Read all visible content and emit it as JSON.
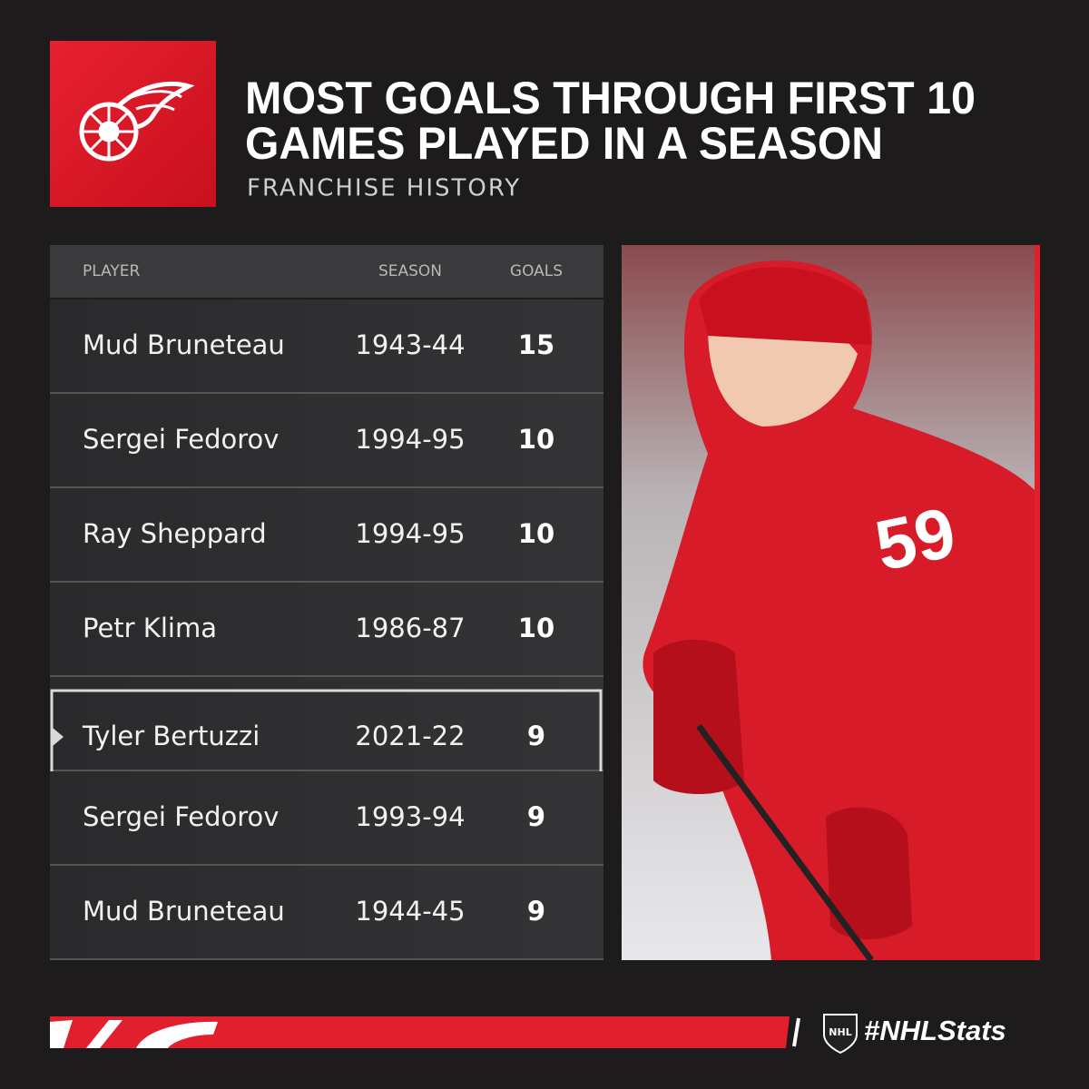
{
  "header": {
    "title": [
      "MOST GOALS THROUGH FIRST 10",
      "GAMES PLAYED IN A SEASON"
    ],
    "subtitle": "FRANCHISE HISTORY"
  },
  "table": {
    "columns": [
      "PLAYER",
      "SEASON",
      "GOALS"
    ],
    "rows": [
      [
        "Mud Bruneteau",
        "1943-44",
        "15"
      ],
      [
        "Sergei Fedorov",
        "1994-95",
        "10"
      ],
      [
        "Ray Sheppard",
        "1994-95",
        "10"
      ],
      [
        "Petr Klima",
        "1986-87",
        "10"
      ],
      [
        "Tyler Bertuzzi",
        "2021-22",
        "9"
      ],
      [
        "Sergei Fedorov",
        "1993-94",
        "9"
      ],
      [
        "Mud Bruneteau",
        "1944-45",
        "9"
      ]
    ],
    "highlighted_row": 4
  },
  "footer": {
    "hashtag": "#NHLStats",
    "logo": "NHL"
  }
}
